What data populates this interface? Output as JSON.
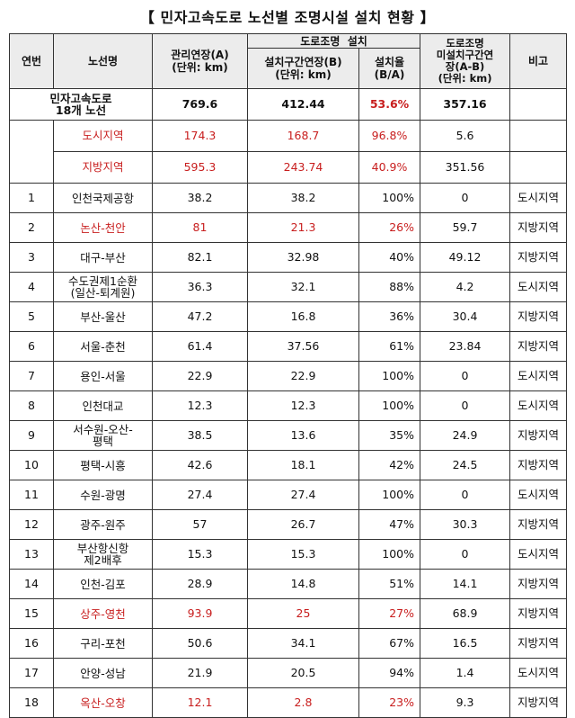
{
  "title": "【 민자고속도로 노선별 조명시설 설치 현황 】",
  "headers": {
    "no": "연번",
    "route": "노선명",
    "managed_length": "관리연장(A)\n(단위: km)",
    "lighting_group": "도로조명  설치",
    "installed_length": "설치구간연장(B)\n(단위: km)",
    "install_rate": "설치율\n(B/A)",
    "uninstalled_length": "도로조명\n미설치구간연\n장(A-B)\n(단위: km)",
    "remarks": "비고"
  },
  "summary": [
    {
      "label": "민자고속도로\n18개 노선",
      "managed": "769.6",
      "installed": "412.44",
      "rate": "53.6%",
      "uninstalled": "357.16",
      "remark": ""
    },
    {
      "label": "도시지역",
      "managed": "174.3",
      "installed": "168.7",
      "rate": "96.8%",
      "uninstalled": "5.6",
      "remark": ""
    },
    {
      "label": "지방지역",
      "managed": "595.3",
      "installed": "243.74",
      "rate": "40.9%",
      "uninstalled": "351.56",
      "remark": ""
    }
  ],
  "rows": [
    {
      "no": "1",
      "route": "인천국제공항",
      "managed": "38.2",
      "installed": "38.2",
      "rate": "100%",
      "uninstalled": "0",
      "remark": "도시지역",
      "highlight": false
    },
    {
      "no": "2",
      "route": "논산-천안",
      "managed": "81",
      "installed": "21.3",
      "rate": "26%",
      "uninstalled": "59.7",
      "remark": "지방지역",
      "highlight": true
    },
    {
      "no": "3",
      "route": "대구-부산",
      "managed": "82.1",
      "installed": "32.98",
      "rate": "40%",
      "uninstalled": "49.12",
      "remark": "지방지역",
      "highlight": false
    },
    {
      "no": "4",
      "route": "수도권제1순환\n(일산-퇴계원)",
      "managed": "36.3",
      "installed": "32.1",
      "rate": "88%",
      "uninstalled": "4.2",
      "remark": "도시지역",
      "highlight": false
    },
    {
      "no": "5",
      "route": "부산-울산",
      "managed": "47.2",
      "installed": "16.8",
      "rate": "36%",
      "uninstalled": "30.4",
      "remark": "지방지역",
      "highlight": false
    },
    {
      "no": "6",
      "route": "서울-춘천",
      "managed": "61.4",
      "installed": "37.56",
      "rate": "61%",
      "uninstalled": "23.84",
      "remark": "지방지역",
      "highlight": false
    },
    {
      "no": "7",
      "route": "용인-서울",
      "managed": "22.9",
      "installed": "22.9",
      "rate": "100%",
      "uninstalled": "0",
      "remark": "도시지역",
      "highlight": false
    },
    {
      "no": "8",
      "route": "인천대교",
      "managed": "12.3",
      "installed": "12.3",
      "rate": "100%",
      "uninstalled": "0",
      "remark": "도시지역",
      "highlight": false
    },
    {
      "no": "9",
      "route": "서수원-오산-\n평택",
      "managed": "38.5",
      "installed": "13.6",
      "rate": "35%",
      "uninstalled": "24.9",
      "remark": "지방지역",
      "highlight": false
    },
    {
      "no": "10",
      "route": "평택-시흥",
      "managed": "42.6",
      "installed": "18.1",
      "rate": "42%",
      "uninstalled": "24.5",
      "remark": "지방지역",
      "highlight": false
    },
    {
      "no": "11",
      "route": "수원-광명",
      "managed": "27.4",
      "installed": "27.4",
      "rate": "100%",
      "uninstalled": "0",
      "remark": "도시지역",
      "highlight": false
    },
    {
      "no": "12",
      "route": "광주-원주",
      "managed": "57",
      "installed": "26.7",
      "rate": "47%",
      "uninstalled": "30.3",
      "remark": "지방지역",
      "highlight": false
    },
    {
      "no": "13",
      "route": "부산항신항\n제2배후",
      "managed": "15.3",
      "installed": "15.3",
      "rate": "100%",
      "uninstalled": "0",
      "remark": "도시지역",
      "highlight": false
    },
    {
      "no": "14",
      "route": "인천-김포",
      "managed": "28.9",
      "installed": "14.8",
      "rate": "51%",
      "uninstalled": "14.1",
      "remark": "지방지역",
      "highlight": false
    },
    {
      "no": "15",
      "route": "상주-영천",
      "managed": "93.9",
      "installed": "25",
      "rate": "27%",
      "uninstalled": "68.9",
      "remark": "지방지역",
      "highlight": true
    },
    {
      "no": "16",
      "route": "구리-포천",
      "managed": "50.6",
      "installed": "34.1",
      "rate": "67%",
      "uninstalled": "16.5",
      "remark": "지방지역",
      "highlight": false
    },
    {
      "no": "17",
      "route": "안양-성남",
      "managed": "21.9",
      "installed": "20.5",
      "rate": "94%",
      "uninstalled": "1.4",
      "remark": "도시지역",
      "highlight": false
    },
    {
      "no": "18",
      "route": "옥산-오창",
      "managed": "12.1",
      "installed": "2.8",
      "rate": "23%",
      "uninstalled": "9.3",
      "remark": "지방지역",
      "highlight": true
    }
  ],
  "colors": {
    "highlight": "#c81e1e",
    "header_bg": "#ececec",
    "border": "#333333"
  }
}
